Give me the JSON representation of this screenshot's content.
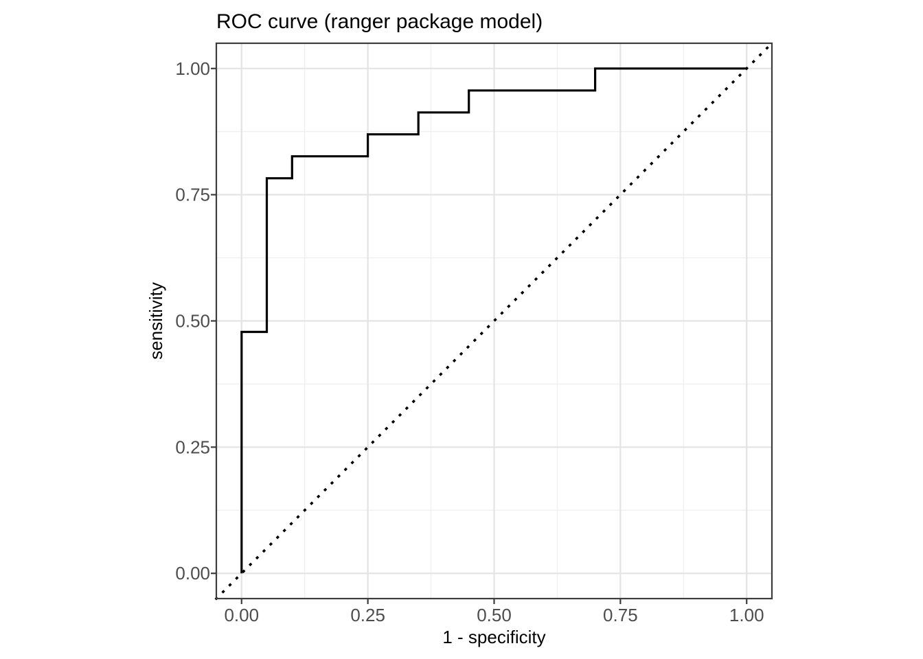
{
  "chart_data": {
    "type": "line",
    "subtype": "roc-step-curve",
    "title": "ROC curve (ranger package model)",
    "xlabel": "1 - specificity",
    "ylabel": "sensitivity",
    "xlim": [
      -0.05,
      1.05
    ],
    "ylim": [
      -0.05,
      1.05
    ],
    "x_ticks": [
      0,
      0.25,
      0.5,
      0.75,
      1
    ],
    "y_ticks": [
      0,
      0.25,
      0.5,
      0.75,
      1
    ],
    "x_tick_labels": [
      "0.00",
      "0.25",
      "0.50",
      "0.75",
      "1.00"
    ],
    "y_tick_labels": [
      "0.00",
      "0.25",
      "0.50",
      "0.75",
      "1.00"
    ],
    "x_minor_ticks": [
      0.125,
      0.375,
      0.625,
      0.875
    ],
    "y_minor_ticks": [
      0.125,
      0.375,
      0.625,
      0.875
    ],
    "grid": "major+minor",
    "legend_position": "none",
    "series": [
      {
        "name": "roc-curve",
        "type": "step",
        "linestyle": "solid",
        "color": "#000000",
        "points": [
          [
            0,
            0
          ],
          [
            0,
            0.4783
          ],
          [
            0.05,
            0.4783
          ],
          [
            0.05,
            0.7826
          ],
          [
            0.1,
            0.7826
          ],
          [
            0.1,
            0.8261
          ],
          [
            0.25,
            0.8261
          ],
          [
            0.25,
            0.8696
          ],
          [
            0.35,
            0.8696
          ],
          [
            0.35,
            0.913
          ],
          [
            0.45,
            0.913
          ],
          [
            0.45,
            0.9565
          ],
          [
            0.7,
            0.9565
          ],
          [
            0.7,
            1
          ],
          [
            1,
            1
          ]
        ]
      },
      {
        "name": "chance-diagonal",
        "type": "line",
        "linestyle": "dotted",
        "color": "#000000",
        "points": [
          [
            -0.05,
            -0.05
          ],
          [
            1.05,
            1.05
          ]
        ]
      }
    ],
    "colors": {
      "background": "#ffffff",
      "panel_background": "#ffffff",
      "panel_border": "#3c3c3c",
      "grid_major": "#e4e4e4",
      "grid_minor": "#efefef",
      "tick": "#3c3c3c",
      "tick_label": "#4d4d4d",
      "title": "#000000",
      "axis_title": "#000000",
      "curve": "#000000"
    }
  }
}
